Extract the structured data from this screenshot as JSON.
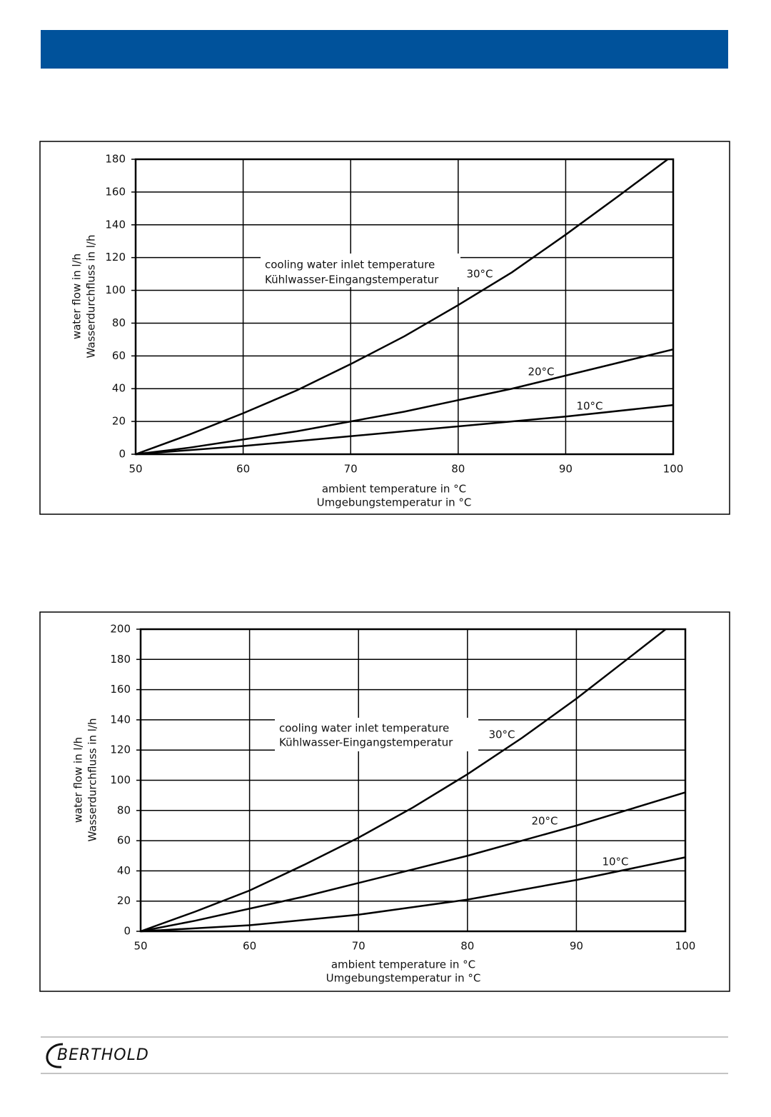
{
  "chart_data": [
    {
      "type": "line",
      "x_label": [
        "ambient temperature in °C",
        "Umgebungstemperatur in °C"
      ],
      "y_label": [
        "water flow in l/h",
        "Wasserdurchfluss in l/h"
      ],
      "annotation": [
        "cooling water inlet temperature",
        "Kühlwasser-Eingangstemperatur"
      ],
      "xlim": [
        50,
        100
      ],
      "ylim": [
        0,
        180
      ],
      "xticks": [
        50,
        60,
        70,
        80,
        90,
        100
      ],
      "yticks": [
        0,
        20,
        40,
        60,
        80,
        100,
        120,
        140,
        160,
        180
      ],
      "grid": true,
      "series": [
        {
          "name": "30°C",
          "color": "#000000",
          "x": [
            50,
            55,
            60,
            65,
            70,
            75,
            80,
            85,
            90,
            95,
            99.5
          ],
          "values": [
            0,
            12,
            25,
            39,
            55,
            72,
            91,
            111,
            134,
            158,
            180
          ]
        },
        {
          "name": "20°C",
          "color": "#000000",
          "x": [
            50,
            55,
            60,
            65,
            70,
            75,
            80,
            85,
            90,
            95,
            100
          ],
          "values": [
            0,
            4,
            9,
            14,
            20,
            26,
            33,
            40,
            48,
            56,
            64
          ]
        },
        {
          "name": "10°C",
          "color": "#000000",
          "x": [
            50,
            60,
            70,
            80,
            90,
            100
          ],
          "values": [
            0,
            5,
            11,
            17,
            23,
            30
          ]
        }
      ]
    },
    {
      "type": "line",
      "x_label": [
        "ambient temperature in °C",
        "Umgebungstemperatur in °C"
      ],
      "y_label": [
        "water flow in l/h",
        "Wasserdurchfluss in l/h"
      ],
      "annotation": [
        "cooling water inlet temperature",
        "Kühlwasser-Eingangstemperatur"
      ],
      "xlim": [
        50,
        100
      ],
      "ylim": [
        0,
        200
      ],
      "xticks": [
        50,
        60,
        70,
        80,
        90,
        100
      ],
      "yticks": [
        0,
        20,
        40,
        60,
        80,
        100,
        120,
        140,
        160,
        180,
        200
      ],
      "grid": true,
      "series": [
        {
          "name": "30°C",
          "color": "#000000",
          "x": [
            50,
            55,
            60,
            65,
            70,
            75,
            80,
            85,
            90,
            95,
            98.2
          ],
          "values": [
            0,
            13,
            27,
            44,
            62,
            82,
            104,
            128,
            154,
            182,
            200
          ]
        },
        {
          "name": "20°C",
          "color": "#000000",
          "x": [
            50,
            55,
            60,
            65,
            70,
            75,
            80,
            85,
            90,
            95,
            100
          ],
          "values": [
            0,
            7,
            15,
            23,
            32,
            41,
            50,
            60,
            70,
            81,
            92
          ]
        },
        {
          "name": "10°C",
          "color": "#000000",
          "x": [
            50,
            60,
            70,
            80,
            90,
            100
          ],
          "values": [
            0,
            4,
            11,
            21,
            34,
            49
          ]
        }
      ]
    }
  ],
  "footer": {
    "logo": "BERTHOLD"
  }
}
